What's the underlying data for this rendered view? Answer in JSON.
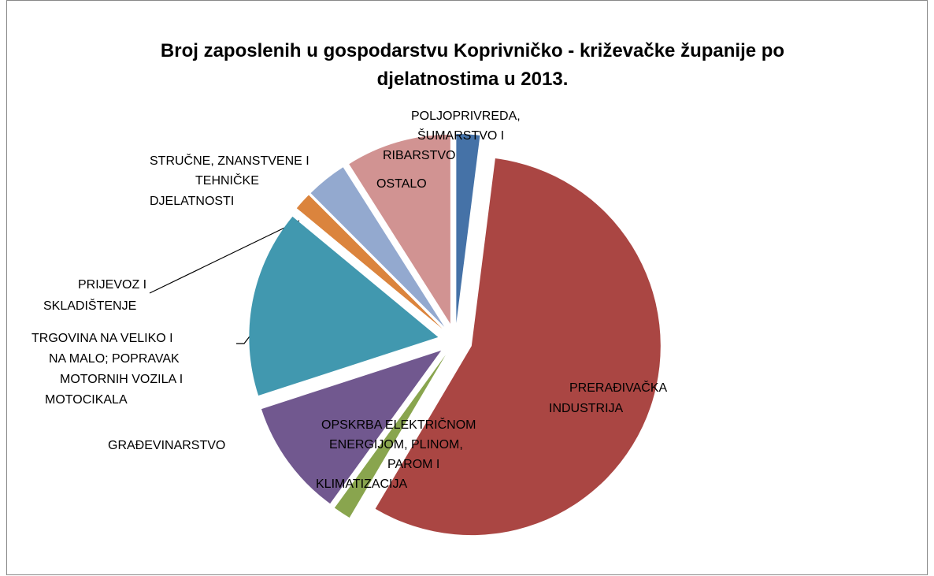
{
  "chart_data": {
    "type": "pie",
    "title": "Broj zaposlenih u gospodarstvu Koprivničko - križevačke županije po djelatnostima u 2013.",
    "categories": [
      "POLJOPRIVREDA, ŠUMARSTVO I RIBARSTVO",
      "PRERAĐIVAČKA INDUSTRIJA",
      "OPSKRBA ELEKTRIČNOM ENERGIJOM, PLINOM, PAROM I KLIMATIZACIJA",
      "GRAĐEVINARSTVO",
      "TRGOVINA NA VELIKO I NA MALO; POPRAVAK MOTORNIH VOZILA I MOTOCIKALA",
      "PRIJEVOZ I SKLADIŠTENJE",
      "STRUČNE, ZNANSTVENE I TEHNIČKE DJELATNOSTI",
      "OSTALO"
    ],
    "values": [
      2,
      56.5,
      1.5,
      10,
      16,
      1.5,
      3.5,
      9
    ],
    "colors": [
      "#4572a7",
      "#aa4643",
      "#89a54e",
      "#71588f",
      "#4198af",
      "#db843d",
      "#93a9cf",
      "#d19392"
    ],
    "exploded": true
  }
}
